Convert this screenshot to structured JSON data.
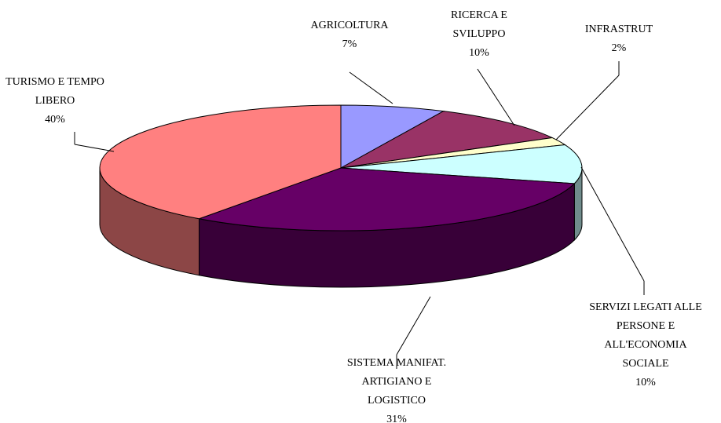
{
  "chart_data": {
    "type": "pie3d",
    "categories": [
      "AGRICOLTURA",
      "RICERCA E\nSVILUPPO",
      "INFRASTRUT",
      "SERVIZI LEGATI ALLE\nPERSONE E\nALL'ECONOMIA\nSOCIALE",
      "SISTEMA MANIFAT.\nARTIGIANO E\nLOGISTICO",
      "TURISMO E TEMPO\nLIBERO"
    ],
    "values": [
      7,
      10,
      2,
      10,
      31,
      40
    ],
    "value_labels": [
      "7%",
      "10%",
      "2%",
      "10%",
      "31%",
      "40%"
    ],
    "colors": [
      "#9999ff",
      "#993366",
      "#ffffcc",
      "#ccffff",
      "#660066",
      "#ff8080"
    ]
  }
}
